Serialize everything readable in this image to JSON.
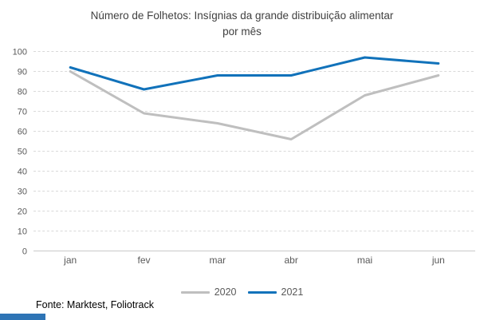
{
  "title": {
    "line1": "Número de Folhetos: Insígnias da grande distribuição alimentar",
    "line2": "por mês"
  },
  "footer": {
    "source": "Fonte: Marktest, Foliotrack"
  },
  "legend": {
    "items": [
      {
        "label": "2020",
        "color": "#BFBFBF"
      },
      {
        "label": "2021",
        "color": "#1172BA"
      }
    ]
  },
  "colors": {
    "gridline": "#D9D9D9",
    "axis_line": "#C9C9C9",
    "tick_text": "#595959",
    "title_text": "#404040",
    "corner_accent": "#2E74B5"
  },
  "chart_data": {
    "type": "line",
    "title": "Número de Folhetos: Insígnias da grande distribuição alimentar por mês",
    "categories": [
      "jan",
      "fev",
      "mar",
      "abr",
      "mai",
      "jun"
    ],
    "series": [
      {
        "name": "2020",
        "color": "#BFBFBF",
        "values": [
          90,
          69,
          64,
          56,
          78,
          88
        ]
      },
      {
        "name": "2021",
        "color": "#1172BA",
        "values": [
          92,
          81,
          88,
          88,
          97,
          94
        ]
      }
    ],
    "xlabel": "",
    "ylabel": "",
    "ylim": [
      0,
      100
    ],
    "ytick_step": 10,
    "grid": "horizontal-dashed",
    "legend_position": "bottom",
    "source_note": "Fonte: Marktest, Foliotrack"
  }
}
